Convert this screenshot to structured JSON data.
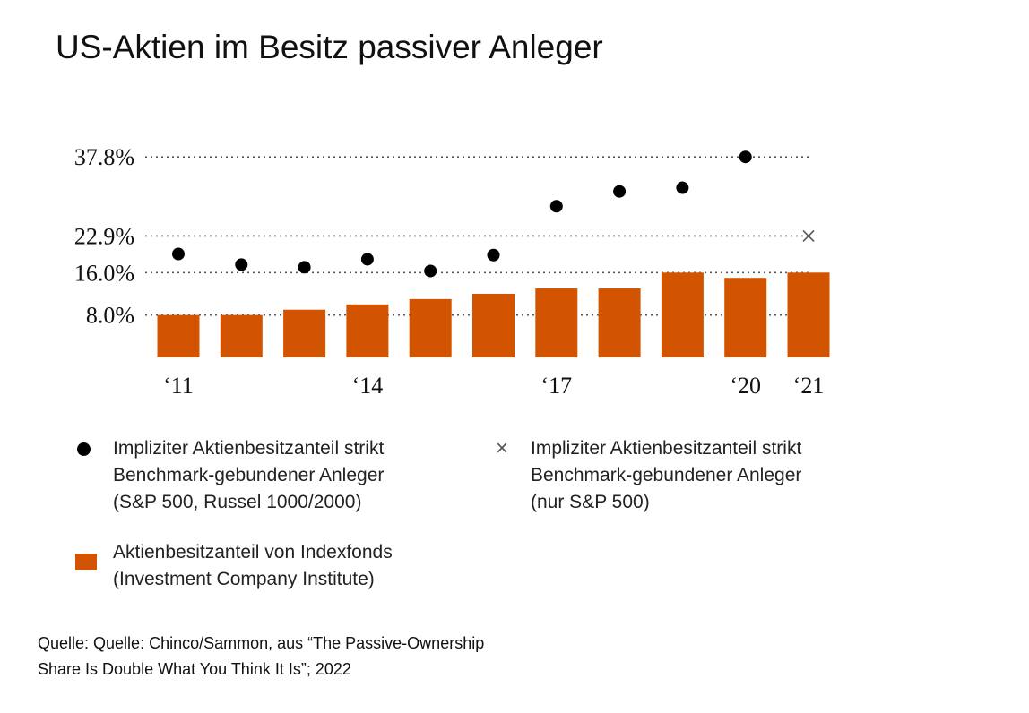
{
  "title": "US-Aktien im Besitz passiver Anleger",
  "chart_data": {
    "type": "bar",
    "x": [
      2011,
      2012,
      2013,
      2014,
      2015,
      2016,
      2017,
      2018,
      2019,
      2020,
      2021
    ],
    "x_tick_labels": [
      {
        "x": 2011,
        "label": "‘11"
      },
      {
        "x": 2014,
        "label": "‘14"
      },
      {
        "x": 2017,
        "label": "‘17"
      },
      {
        "x": 2020,
        "label": "‘20"
      },
      {
        "x": 2021,
        "label": "‘21"
      }
    ],
    "y_ticks": [
      {
        "value": 37.8,
        "label": "37.8%"
      },
      {
        "value": 22.9,
        "label": "22.9%"
      },
      {
        "value": 16.0,
        "label": "16.0%"
      },
      {
        "value": 8.0,
        "label": "8.0%"
      }
    ],
    "ylim": [
      0,
      40
    ],
    "series": [
      {
        "name": "Aktienbesitzanteil von Indexfonds",
        "type": "bar",
        "color": "#d35400",
        "values": [
          8.0,
          8.0,
          9.0,
          10.0,
          11.0,
          12.0,
          13.0,
          13.0,
          16.0,
          15.0,
          16.0
        ]
      },
      {
        "name": "Impliziter Aktienbesitzanteil strikt Benchmark-gebundener Anleger (S&P 500, Russel 1000/2000)",
        "type": "scatter",
        "marker": "dot",
        "color": "#000000",
        "x": [
          2011,
          2012,
          2013,
          2014,
          2015,
          2016,
          2017,
          2018,
          2019,
          2020
        ],
        "values": [
          19.5,
          17.5,
          17.0,
          18.5,
          16.3,
          19.3,
          28.5,
          31.3,
          32.0,
          37.8
        ]
      },
      {
        "name": "Impliziter Aktienbesitzanteil strikt Benchmark-gebundener Anleger (nur S&P 500)",
        "type": "scatter",
        "marker": "x",
        "color": "#555555",
        "x": [
          2021
        ],
        "values": [
          22.9
        ]
      }
    ],
    "reference_lines": [
      37.8,
      22.9,
      16.0,
      8.0
    ]
  },
  "legend": {
    "dots": [
      "Impliziter Aktienbesitzanteil strikt",
      "Benchmark-gebundener Anleger",
      "(S&P 500, Russel 1000/2000)"
    ],
    "cross": [
      "Impliziter Aktienbesitzanteil strikt",
      "Benchmark-gebundener Anleger",
      "(nur S&P 500)"
    ],
    "bars": [
      "Aktienbesitzanteil von Indexfonds",
      "(Investment Company Institute)"
    ]
  },
  "source": [
    "Quelle: Quelle: Chinco/Sammon, aus “The Passive-Ownership",
    "Share Is Double What You Think It Is”; 2022"
  ]
}
